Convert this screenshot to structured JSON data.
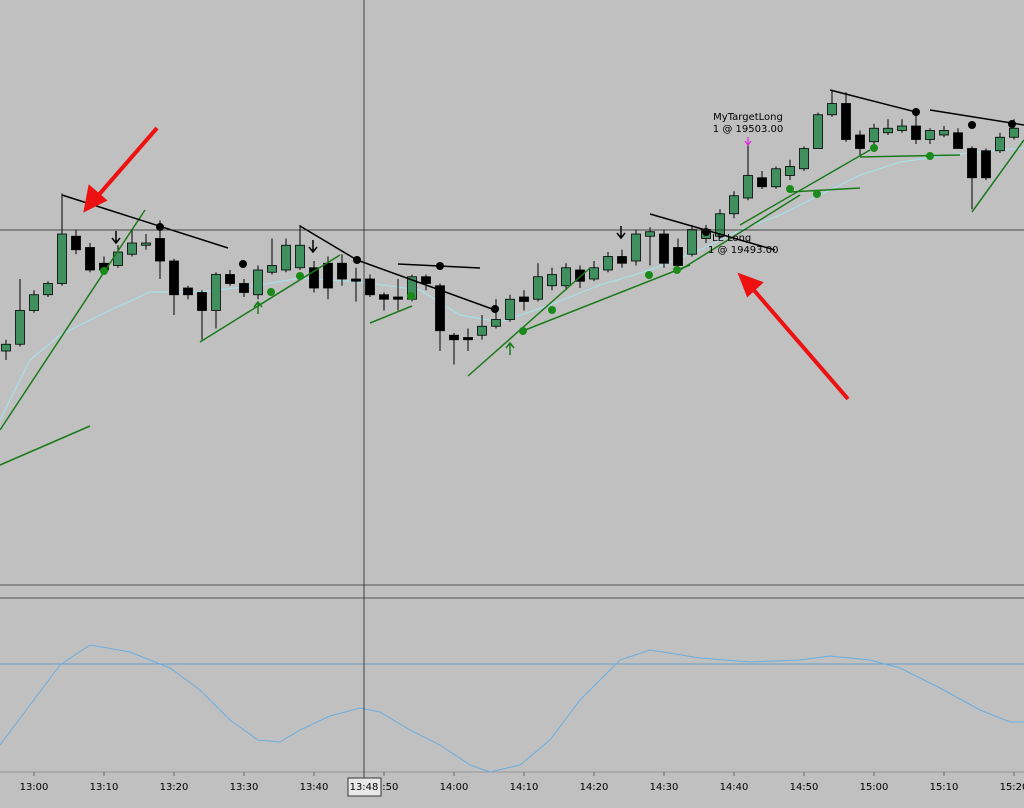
{
  "chart_data": {
    "type": "candlestick",
    "categories": [
      null,
      null,
      "13:00",
      null,
      null,
      null,
      null,
      "13:10",
      null,
      null,
      null,
      null,
      "13:20",
      null,
      null,
      null,
      null,
      "13:30",
      null,
      null,
      null,
      null,
      "13:40",
      null,
      null,
      null,
      null,
      "13:50",
      null,
      null,
      null,
      null,
      "14:00",
      null,
      null,
      null,
      null,
      "14:10",
      null,
      null,
      null,
      null,
      "14:20",
      null,
      null,
      null,
      null,
      "14:30",
      null,
      null,
      null,
      null,
      "14:40",
      null,
      null,
      null,
      null,
      "14:50",
      null,
      null,
      null,
      null,
      "15:00",
      null,
      null,
      null,
      null,
      "15:10",
      null,
      null,
      null,
      null,
      "15:20"
    ],
    "open": [
      19479.5,
      19480.25,
      19484,
      19485.75,
      19487,
      19492.25,
      19491,
      19489.25,
      19489,
      19490.25,
      19491.25,
      19492,
      19489.5,
      19486.5,
      19486,
      19484,
      19488,
      19487,
      19485.75,
      19488.25,
      19488.5,
      19488.75,
      19488.75,
      19489.25,
      19489.25,
      19487.5,
      19487.5,
      19485.75,
      19485.5,
      19485.25,
      19487.75,
      19486.75,
      19481.25,
      19481,
      19481.25,
      19482.25,
      19483,
      19485.5,
      19485.25,
      19486.75,
      19486.75,
      19488.5,
      19487.5,
      19488.5,
      19490,
      19489.5,
      19492.25,
      19492.5,
      19491,
      19490.25,
      19492,
      19492.25,
      19494.75,
      19496.5,
      19498.75,
      19497.75,
      19499,
      19499.75,
      19502,
      19505.75,
      19507,
      19503.5,
      19502.75,
      19503.75,
      19504,
      19504.5,
      19503,
      19503.5,
      19503.75,
      19502,
      19501.75,
      19501.75,
      19503.25
    ],
    "high": [
      19480.75,
      19487.5,
      19486.25,
      19487.25,
      19497,
      19493,
      19491.5,
      19490,
      19491.25,
      19493,
      19492.5,
      19494,
      19489.75,
      19486.75,
      19486.25,
      19488.25,
      19488.5,
      19487.5,
      19489,
      19492,
      19492,
      19493.5,
      19489.5,
      19490,
      19490.25,
      19488.75,
      19488,
      19486,
      19487.5,
      19488,
      19488,
      19487,
      19481.5,
      19482,
      19483.5,
      19485.25,
      19485.75,
      19486.25,
      19489.25,
      19488.75,
      19489.25,
      19489,
      19489.5,
      19490.5,
      19490.75,
      19493,
      19493.25,
      19493,
      19492,
      19493.5,
      19493.5,
      19495.25,
      19497.25,
      19503,
      19499.5,
      19500,
      19500.75,
      19502.25,
      19506,
      19508.5,
      19508.25,
      19504,
      19504.75,
      19505.25,
      19505.25,
      19505.75,
      19504.25,
      19504.5,
      19504.25,
      19502.25,
      19502,
      19503.75,
      19505.25
    ],
    "low": [
      19478.5,
      19480,
      19483.75,
      19485.5,
      19486.75,
      19490.25,
      19488.25,
      19488,
      19488.75,
      19490,
      19490.75,
      19487.5,
      19483.5,
      19485.25,
      19480.75,
      19482,
      19486.75,
      19485.5,
      19485.25,
      19488,
      19488.25,
      19488.5,
      19486,
      19485.25,
      19486.75,
      19485,
      19485.5,
      19484,
      19484,
      19485,
      19486.25,
      19479.5,
      19478,
      19479.5,
      19480.75,
      19482,
      19482.75,
      19484,
      19485,
      19486.25,
      19486.25,
      19486.5,
      19487.25,
      19488.25,
      19488.75,
      19489,
      19489,
      19488.75,
      19488.5,
      19490,
      19491.5,
      19492,
      19494.25,
      19496.25,
      19497.5,
      19497.5,
      19498.5,
      19499.5,
      19502,
      19505.5,
      19502.75,
      19501.25,
      19502.25,
      19503.5,
      19503.75,
      19502.5,
      19502.5,
      19503.25,
      19502,
      19495.25,
      19498.5,
      19501.5,
      19503
    ],
    "close": [
      19480.25,
      19484,
      19485.75,
      19487,
      19492.5,
      19490.75,
      19488.5,
      19488.5,
      19490.5,
      19491.5,
      19491.5,
      19489.5,
      19485.75,
      19485.75,
      19484,
      19488,
      19487,
      19486,
      19488.5,
      19489,
      19491.25,
      19491.25,
      19486.5,
      19486.5,
      19487.5,
      19487.25,
      19485.75,
      19485.25,
      19485.25,
      19487.75,
      19487,
      19481.75,
      19480.75,
      19480.75,
      19482.25,
      19483,
      19485.25,
      19485,
      19487.75,
      19488,
      19488.75,
      19487.25,
      19488.75,
      19490,
      19489.25,
      19492.5,
      19492.75,
      19489.25,
      19489,
      19493,
      19493,
      19494.75,
      19496.75,
      19499,
      19497.75,
      19499.75,
      19500,
      19502,
      19505.75,
      19507,
      19503,
      19502,
      19504.25,
      19504.25,
      19504.5,
      19503,
      19504,
      19504,
      19502,
      19498.75,
      19498.75,
      19503.25,
      19504.25
    ],
    "up_color": "#3f8f5f",
    "down_color": "#000000",
    "ylim": [
      19453.5,
      19518.5
    ],
    "crosshair_label": "13:48",
    "annotations": [
      "MyTargetLong",
      "1 @ 19503.00",
      "LE Long",
      "1 @ 19493.00"
    ]
  }
}
